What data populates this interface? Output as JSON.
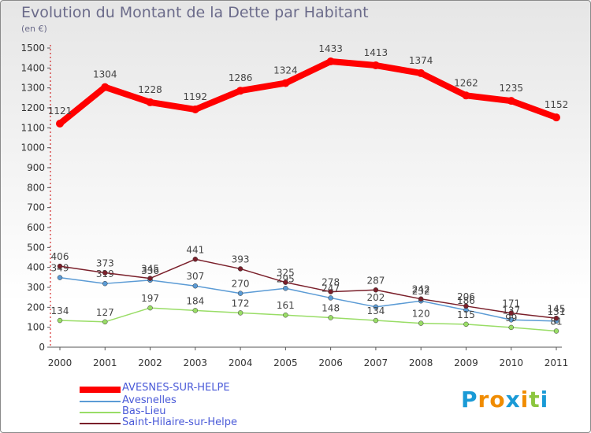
{
  "chart_data": {
    "type": "line",
    "title": "Evolution du Montant de la Dette par Habitant",
    "unit": "(en €)",
    "xlabel": "",
    "ylabel": "",
    "categories": [
      "2000",
      "2001",
      "2002",
      "2003",
      "2004",
      "2005",
      "2006",
      "2007",
      "2008",
      "2009",
      "2010",
      "2011"
    ],
    "ylim": [
      0,
      1500
    ],
    "yticks": [
      0,
      100,
      200,
      300,
      400,
      500,
      600,
      700,
      800,
      900,
      1000,
      1100,
      1200,
      1300,
      1400,
      1500
    ],
    "grid": false,
    "legend_position": "bottom-left",
    "series": [
      {
        "name": "AVESNES-SUR-HELPE",
        "color": "#ff0000",
        "labelColor": "#444444",
        "values": [
          1121,
          1304,
          1228,
          1192,
          1286,
          1324,
          1433,
          1413,
          1374,
          1262,
          1235,
          1152
        ],
        "labels": [
          "1121",
          "1304",
          "1228",
          "1192",
          "1286",
          "1324",
          "1433",
          "1413",
          "1374",
          "1262",
          "1235",
          "1152"
        ]
      },
      {
        "name": "Avesnelles",
        "color": "#5b9bd5",
        "labelColor": "#444444",
        "values": [
          349,
          319,
          336,
          307,
          270,
          295,
          247,
          202,
          232,
          186,
          137,
          131
        ],
        "labels": [
          "349",
          "319",
          "336",
          "307",
          "270",
          "295",
          "247",
          "202",
          "232",
          "186",
          "137",
          "131"
        ]
      },
      {
        "name": "Bas-Lieu",
        "color": "#99dd66",
        "labelColor": "#444444",
        "values": [
          134,
          127,
          197,
          184,
          172,
          161,
          148,
          134,
          120,
          115,
          99,
          81
        ],
        "labels": [
          "134",
          "127",
          "197",
          "184",
          "172",
          "161",
          "148",
          "134",
          "120",
          "115",
          "99",
          "81"
        ]
      },
      {
        "name": "Saint-Hilaire-sur-Helpe",
        "color": "#7a1f2a",
        "labelColor": "#444444",
        "values": [
          406,
          373,
          345,
          441,
          393,
          325,
          278,
          287,
          242,
          206,
          171,
          145
        ],
        "labels": [
          "406",
          "373",
          "345",
          "441",
          "393",
          "325",
          "278",
          "287",
          "242",
          "206",
          "171",
          "145"
        ]
      }
    ]
  },
  "legend_colors": {
    "text": "#4a5ad8"
  },
  "logo": {
    "letters": [
      "P",
      "r",
      "o",
      "x",
      "i",
      "t",
      "i"
    ],
    "colors": [
      "#1a9ad6",
      "#f08c00",
      "#f08c00",
      "#1a9ad6",
      "#f08c00",
      "#8cc63f",
      "#1a9ad6"
    ]
  }
}
